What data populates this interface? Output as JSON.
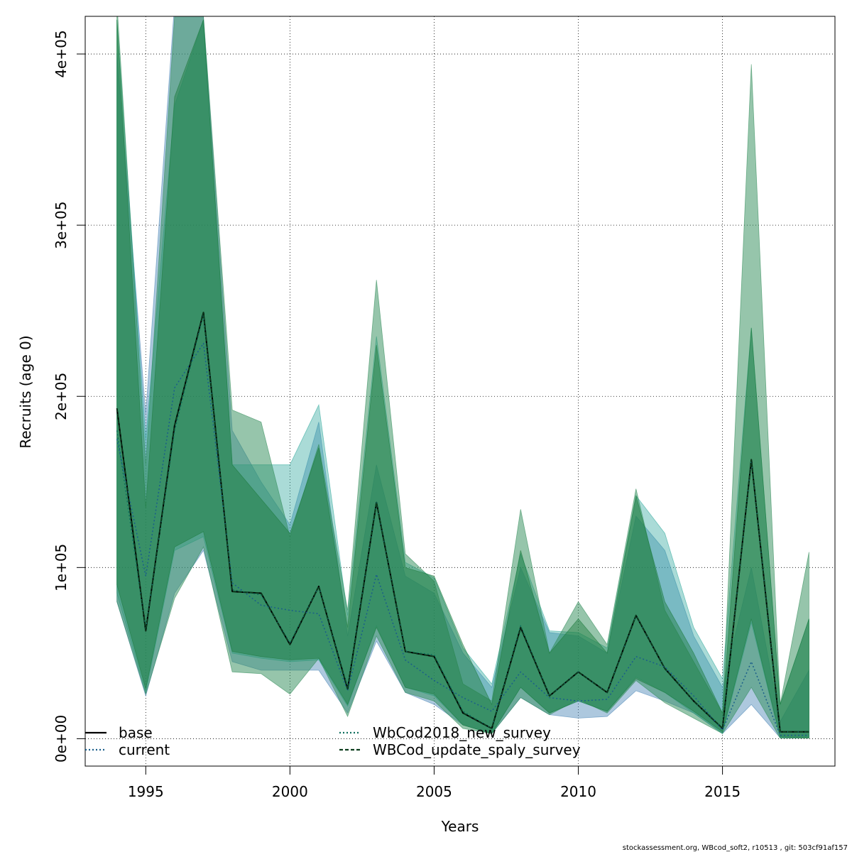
{
  "chart_data": {
    "type": "line",
    "xlabel": "Years",
    "ylabel": "Recruits (age 0)",
    "xlim": [
      1992.9,
      2018.9
    ],
    "ylim": [
      -16000,
      422000
    ],
    "x_ticks": [
      1995,
      2000,
      2005,
      2010,
      2015
    ],
    "x_tick_labels": [
      "1995",
      "2000",
      "2005",
      "2010",
      "2015"
    ],
    "y_ticks": [
      0,
      100000,
      200000,
      300000,
      400000
    ],
    "y_tick_labels": [
      "0e+00",
      "1e+05",
      "2e+05",
      "3e+05",
      "4e+05"
    ],
    "grid": true,
    "legend_position": "bottom-left",
    "footer": "stockassessment.org, WBcod_soft2, r10513 , git: 503cf91af157",
    "colors": {
      "base_band": "#1a7a3a",
      "current_band": "#4a86b5",
      "wb2018_band": "#2aa69a",
      "spaly_band": "#2e8b57",
      "line": "#000000",
      "current_line": "#1a5e8a",
      "wb2018_line": "#0e6e5e",
      "spaly_line": "#0b3d1c"
    },
    "years": [
      1994,
      1995,
      1996,
      1997,
      1998,
      1999,
      2000,
      2001,
      2002,
      2003,
      2004,
      2005,
      2006,
      2007,
      2008,
      2009,
      2010,
      2011,
      2012,
      2013,
      2014,
      2015,
      2016,
      2017,
      2018
    ],
    "series": [
      {
        "name": "base",
        "key": "base",
        "style": "solid",
        "values": [
          193000,
          63000,
          183000,
          249000,
          86000,
          85000,
          55000,
          89000,
          29000,
          138000,
          51000,
          48000,
          15000,
          6000,
          65000,
          25000,
          39000,
          27000,
          72000,
          41000,
          22000,
          6000,
          163000,
          4000,
          4000
        ],
        "lower": [
          90000,
          29000,
          112000,
          121000,
          51000,
          48000,
          46000,
          47000,
          20000,
          65000,
          30000,
          26000,
          8000,
          3000,
          30000,
          15000,
          22000,
          16000,
          35000,
          27000,
          16000,
          4000,
          70000,
          1000,
          500
        ],
        "upper": [
          420000,
          135000,
          375000,
          420000,
          160000,
          140000,
          120000,
          170000,
          65000,
          230000,
          100000,
          95000,
          55000,
          20000,
          110000,
          50000,
          70000,
          50000,
          142000,
          80000,
          50000,
          15000,
          240000,
          20000,
          70000
        ]
      },
      {
        "name": "current",
        "key": "current",
        "style": "dotted",
        "values": [
          175000,
          95000,
          205000,
          231000,
          91000,
          78000,
          75000,
          73000,
          28000,
          96000,
          46000,
          34000,
          24000,
          16000,
          39000,
          24000,
          22000,
          23000,
          48000,
          42000,
          25000,
          5000,
          45000,
          2000,
          2000
        ],
        "lower": [
          80000,
          25000,
          85000,
          110000,
          45000,
          40000,
          40000,
          40000,
          15000,
          57000,
          27000,
          20000,
          8000,
          3000,
          24000,
          14000,
          12000,
          13000,
          28000,
          22000,
          15000,
          3000,
          20000,
          500,
          500
        ],
        "upper": [
          400000,
          190000,
          430000,
          422000,
          180000,
          150000,
          125000,
          185000,
          60000,
          160000,
          95000,
          85000,
          50000,
          30000,
          100000,
          62000,
          60000,
          50000,
          130000,
          110000,
          60000,
          30000,
          100000,
          10000,
          40000
        ]
      },
      {
        "name": "WbCod2018_new_survey",
        "key": "wb2018",
        "style": "dotted",
        "values": [
          180000,
          64000,
          180000,
          248000,
          87000,
          84000,
          56000,
          89000,
          30000,
          138000,
          51000,
          49000,
          16000,
          6000,
          66000,
          25000,
          39000,
          27000,
          72000,
          41000,
          22000,
          6000,
          163000,
          4000,
          4000
        ],
        "lower": [
          85000,
          27000,
          110000,
          118000,
          50000,
          47000,
          45000,
          46000,
          19000,
          66000,
          30000,
          25000,
          8000,
          3000,
          30000,
          15000,
          22000,
          16000,
          36000,
          27000,
          15000,
          3000,
          68000,
          500,
          500
        ],
        "upper": [
          420000,
          175000,
          370000,
          420000,
          160000,
          160000,
          160000,
          195000,
          72000,
          235000,
          103000,
          94000,
          53000,
          32000,
          108000,
          63000,
          62000,
          53000,
          142000,
          120000,
          65000,
          35000,
          240000,
          20000,
          70000
        ]
      },
      {
        "name": "WBCod_update_spaly_survey",
        "key": "spaly",
        "style": "dashed",
        "values": [
          193000,
          63000,
          183000,
          249000,
          86000,
          85000,
          55000,
          89000,
          29000,
          138000,
          51000,
          48000,
          15000,
          6000,
          65000,
          25000,
          39000,
          27000,
          72000,
          41000,
          22000,
          6000,
          163000,
          4000,
          4000
        ],
        "lower": [
          80000,
          26000,
          82000,
          112000,
          39000,
          38000,
          26000,
          47000,
          13000,
          60000,
          27000,
          22000,
          6000,
          3000,
          24000,
          14000,
          23000,
          15000,
          34000,
          21000,
          12000,
          3000,
          30000,
          300,
          300
        ],
        "upper": [
          430000,
          160000,
          422000,
          422000,
          192000,
          185000,
          118000,
          172000,
          75000,
          268000,
          108000,
          92000,
          32000,
          22000,
          134000,
          50000,
          80000,
          55000,
          146000,
          75000,
          45000,
          15000,
          394000,
          20000,
          109000
        ]
      }
    ]
  }
}
